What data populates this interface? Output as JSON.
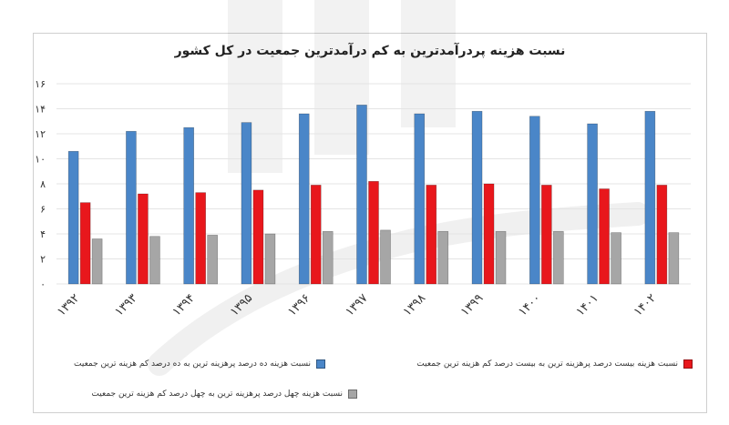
{
  "chart_data": {
    "type": "bar",
    "title": "نسبت هزینه پردرآمدترین به کم درآمدترین جمعیت در کل کشور",
    "categories": [
      "۱۳۹۲",
      "۱۳۹۳",
      "۱۳۹۴",
      "۱۳۹۵",
      "۱۳۹۶",
      "۱۳۹۷",
      "۱۳۹۸",
      "۱۳۹۹",
      "۱۴۰۰",
      "۱۴۰۱",
      "۱۴۰۲"
    ],
    "series": [
      {
        "name": "نسبت هزینه ده درصد پرهزینه ترین به ده درصد کم هزینه ترین جمعیت",
        "color": "#4a86c8",
        "values": [
          10.6,
          12.2,
          12.5,
          12.9,
          13.6,
          14.3,
          13.6,
          13.8,
          13.4,
          12.8,
          13.8
        ]
      },
      {
        "name": "نسبت هزینه بیست درصد پرهزینه ترین به بیست درصد کم هزینه ترین جمعیت",
        "color": "#e8171c",
        "values": [
          6.5,
          7.2,
          7.3,
          7.5,
          7.9,
          8.2,
          7.9,
          8.0,
          7.9,
          7.6,
          7.9
        ]
      },
      {
        "name": "نسبت هزینه چهل درصد پرهزینه ترین به چهل درصد کم هزینه ترین جمعیت",
        "color": "#a6a6a6",
        "values": [
          3.6,
          3.8,
          3.9,
          4.0,
          4.2,
          4.3,
          4.2,
          4.2,
          4.2,
          4.1,
          4.1
        ]
      }
    ],
    "ylim": [
      0,
      16
    ],
    "yticks": [
      0,
      2,
      4,
      6,
      8,
      10,
      12,
      14,
      16
    ],
    "ytick_labels": [
      "۰",
      "۲",
      "۴",
      "۶",
      "۸",
      "۱۰",
      "۱۲",
      "۱۴",
      "۱۶"
    ],
    "grid": true,
    "legend_position": "bottom"
  }
}
